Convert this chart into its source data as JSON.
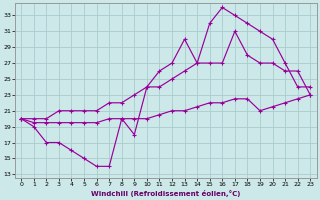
{
  "bg_color": "#cce8e8",
  "grid_color": "#aacccc",
  "line_color": "#990099",
  "xlabel": "Windchill (Refroidissement éolien,°C)",
  "xlim": [
    -0.5,
    23.5
  ],
  "ylim": [
    12.5,
    34.5
  ],
  "xticks": [
    0,
    1,
    2,
    3,
    4,
    5,
    6,
    7,
    8,
    9,
    10,
    11,
    12,
    13,
    14,
    15,
    16,
    17,
    18,
    19,
    20,
    21,
    22,
    23
  ],
  "yticks": [
    13,
    15,
    17,
    19,
    21,
    23,
    25,
    27,
    29,
    31,
    33
  ],
  "curve1_x": [
    0,
    1,
    2,
    3,
    4,
    5,
    6,
    7,
    8,
    9,
    10,
    11,
    12,
    13,
    14,
    15,
    16,
    17,
    18,
    19,
    20,
    21,
    22,
    23
  ],
  "curve1_y": [
    20,
    19,
    17,
    17,
    16,
    15,
    14,
    14,
    20,
    18,
    24,
    26,
    27,
    30,
    27,
    32,
    34,
    33,
    32,
    31,
    30,
    27,
    24,
    24
  ],
  "curve2_x": [
    0,
    1,
    2,
    3,
    4,
    5,
    6,
    7,
    8,
    9,
    10,
    11,
    12,
    13,
    14,
    15,
    16,
    17,
    18,
    19,
    20,
    21,
    22,
    23
  ],
  "curve2_y": [
    20,
    20,
    20,
    21,
    21,
    21,
    21,
    22,
    22,
    23,
    24,
    24,
    25,
    26,
    27,
    27,
    27,
    31,
    28,
    27,
    27,
    26,
    26,
    23
  ],
  "curve3_x": [
    0,
    1,
    2,
    3,
    4,
    5,
    6,
    7,
    8,
    9,
    10,
    11,
    12,
    13,
    14,
    15,
    16,
    17,
    18,
    19,
    20,
    21,
    22,
    23
  ],
  "curve3_y": [
    20,
    19.5,
    19.5,
    19.5,
    19.5,
    19.5,
    19.5,
    20,
    20,
    20,
    20,
    20.5,
    21,
    21,
    21.5,
    22,
    22,
    22.5,
    22.5,
    21,
    21.5,
    22,
    22.5,
    23
  ]
}
